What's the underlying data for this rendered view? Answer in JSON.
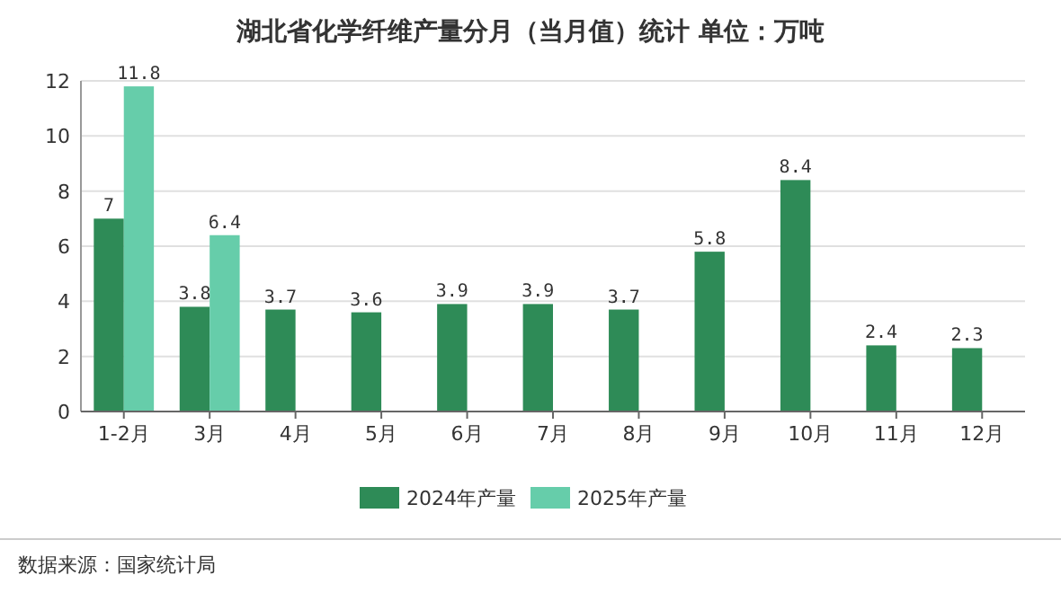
{
  "chart_data": {
    "type": "bar",
    "title": "湖北省化学纤维产量分月（当月值）统计  单位：万吨",
    "categories": [
      "1-2月",
      "3月",
      "4月",
      "5月",
      "6月",
      "7月",
      "8月",
      "9月",
      "10月",
      "11月",
      "12月"
    ],
    "series": [
      {
        "name": "2024年产量",
        "color": "#2e8b57",
        "values": [
          7,
          3.8,
          3.7,
          3.6,
          3.9,
          3.9,
          3.7,
          5.8,
          8.4,
          2.4,
          2.3
        ]
      },
      {
        "name": "2025年产量",
        "color": "#66cdaa",
        "values": [
          11.8,
          6.4,
          null,
          null,
          null,
          null,
          null,
          null,
          null,
          null,
          null
        ]
      }
    ],
    "ylim": [
      0,
      12
    ],
    "yticks": [
      0,
      2,
      4,
      6,
      8,
      10,
      12
    ],
    "grid": "y",
    "legend": "bottom",
    "data_labels": true,
    "annotations": [
      "数据来源：国家统计局"
    ]
  }
}
